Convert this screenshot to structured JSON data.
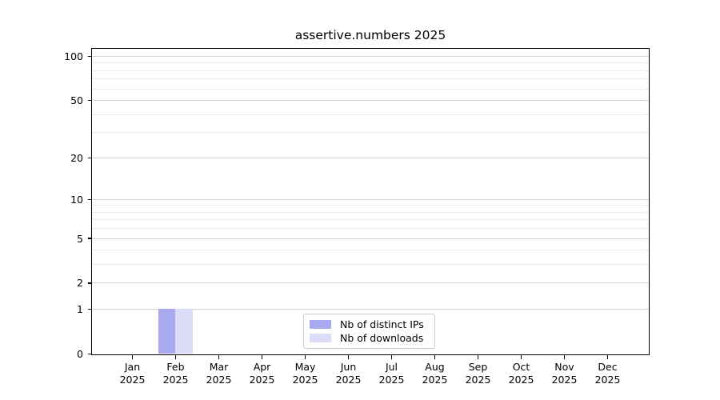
{
  "chart_data": {
    "type": "bar",
    "title": "assertive.numbers 2025",
    "categories": [
      {
        "month": "Jan",
        "year": "2025"
      },
      {
        "month": "Feb",
        "year": "2025"
      },
      {
        "month": "Mar",
        "year": "2025"
      },
      {
        "month": "Apr",
        "year": "2025"
      },
      {
        "month": "May",
        "year": "2025"
      },
      {
        "month": "Jun",
        "year": "2025"
      },
      {
        "month": "Jul",
        "year": "2025"
      },
      {
        "month": "Aug",
        "year": "2025"
      },
      {
        "month": "Sep",
        "year": "2025"
      },
      {
        "month": "Oct",
        "year": "2025"
      },
      {
        "month": "Nov",
        "year": "2025"
      },
      {
        "month": "Dec",
        "year": "2025"
      }
    ],
    "series": [
      {
        "key": "distinct-ips",
        "name": "Nb of distinct IPs",
        "color": "#a9a9f0",
        "values": [
          0,
          1,
          0,
          0,
          0,
          0,
          0,
          0,
          0,
          0,
          0,
          0
        ]
      },
      {
        "key": "downloads",
        "name": "Nb of downloads",
        "color": "#dcdcf8",
        "values": [
          0,
          1,
          0,
          0,
          0,
          0,
          0,
          0,
          0,
          0,
          0,
          0
        ]
      }
    ],
    "y_scale": "log1p",
    "ylim": [
      0,
      112
    ],
    "y_ticks_major": [
      0,
      1,
      2,
      5,
      10,
      20,
      50,
      100
    ],
    "y_ticks_minor": [
      3,
      4,
      6,
      7,
      8,
      9,
      30,
      40,
      60,
      70,
      80,
      90
    ],
    "grid": "horizontal",
    "legend_position": "lower center"
  }
}
